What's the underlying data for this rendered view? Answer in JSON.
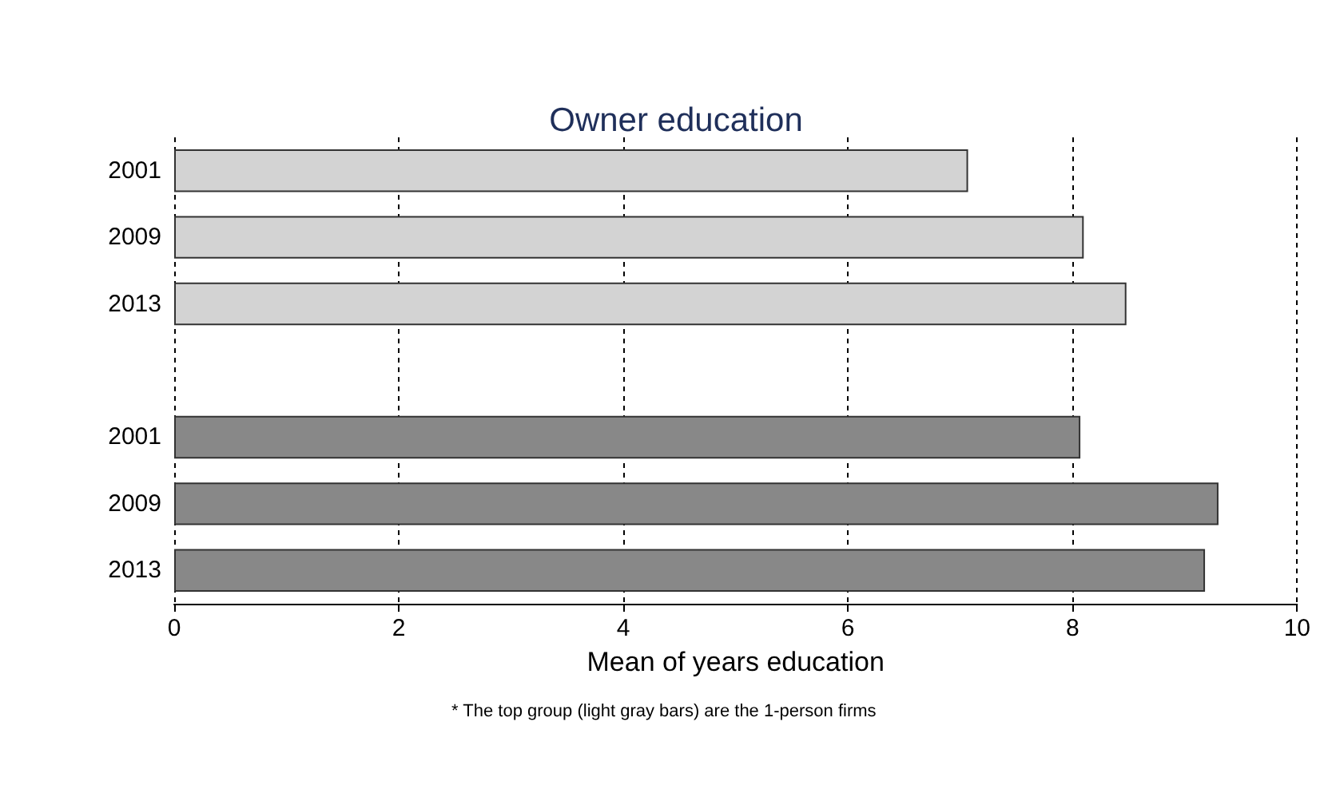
{
  "chart_data": {
    "type": "bar",
    "orientation": "horizontal",
    "title": "Owner education",
    "xlabel": "Mean of years education",
    "categories": [
      "2001",
      "2009",
      "2013",
      null,
      "2001",
      "2009",
      "2013"
    ],
    "values": [
      7.07,
      8.1,
      8.48,
      null,
      8.07,
      9.3,
      9.18
    ],
    "colors": [
      "#d3d3d3",
      "#d3d3d3",
      "#d3d3d3",
      "#d3d3d3",
      "#888888",
      "#888888",
      "#888888"
    ],
    "xlim": [
      0,
      10
    ],
    "xticks": [
      0,
      2,
      4,
      6,
      8,
      10
    ],
    "grid": "x",
    "annotations": [
      "* The top group (light gray bars) are the 1-person firms"
    ]
  }
}
